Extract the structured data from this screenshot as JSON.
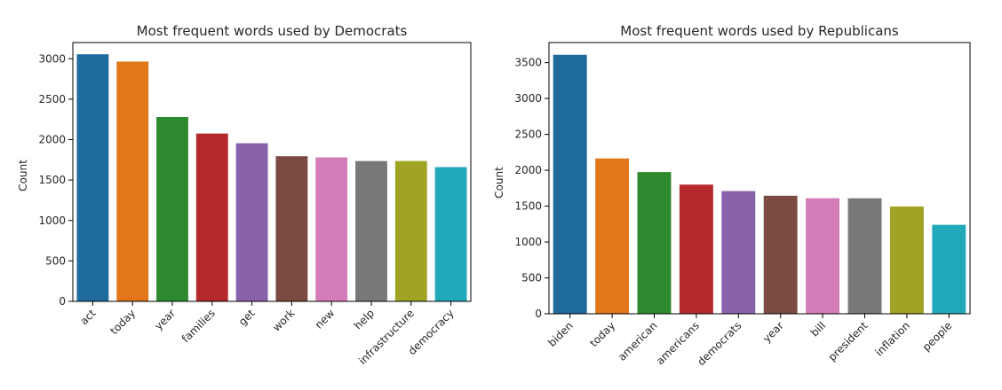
{
  "chart_data": [
    {
      "type": "bar",
      "title": "Most frequent words used by Democrats",
      "xlabel": "",
      "ylabel": "Count",
      "ylim": [
        0,
        3200
      ],
      "yticks": [
        0,
        500,
        1000,
        1500,
        2000,
        2500,
        3000
      ],
      "categories": [
        "act",
        "today",
        "year",
        "families",
        "get",
        "work",
        "new",
        "help",
        "infrastructure",
        "democracy"
      ],
      "values": [
        3055,
        2965,
        2280,
        2075,
        1955,
        1795,
        1780,
        1735,
        1735,
        1660
      ],
      "colors": [
        "#1f6b9e",
        "#e1761a",
        "#2e8a2e",
        "#b5292b",
        "#8862ab",
        "#7b4a40",
        "#d37cb7",
        "#787878",
        "#a1a324",
        "#21a8b9"
      ],
      "grid": false,
      "legend": false
    },
    {
      "type": "bar",
      "title": "Most frequent words used by Republicans",
      "xlabel": "",
      "ylabel": "Count",
      "ylim": [
        0,
        3780
      ],
      "yticks": [
        0,
        500,
        1000,
        1500,
        2000,
        2500,
        3000,
        3500
      ],
      "categories": [
        "biden",
        "today",
        "american",
        "americans",
        "democrats",
        "year",
        "bill",
        "president",
        "inflation",
        "people"
      ],
      "values": [
        3610,
        2165,
        1975,
        1800,
        1710,
        1645,
        1610,
        1610,
        1495,
        1240
      ],
      "colors": [
        "#1f6b9e",
        "#e1761a",
        "#2e8a2e",
        "#b5292b",
        "#8862ab",
        "#7b4a40",
        "#d37cb7",
        "#787878",
        "#a1a324",
        "#21a8b9"
      ],
      "grid": false,
      "legend": false
    }
  ]
}
